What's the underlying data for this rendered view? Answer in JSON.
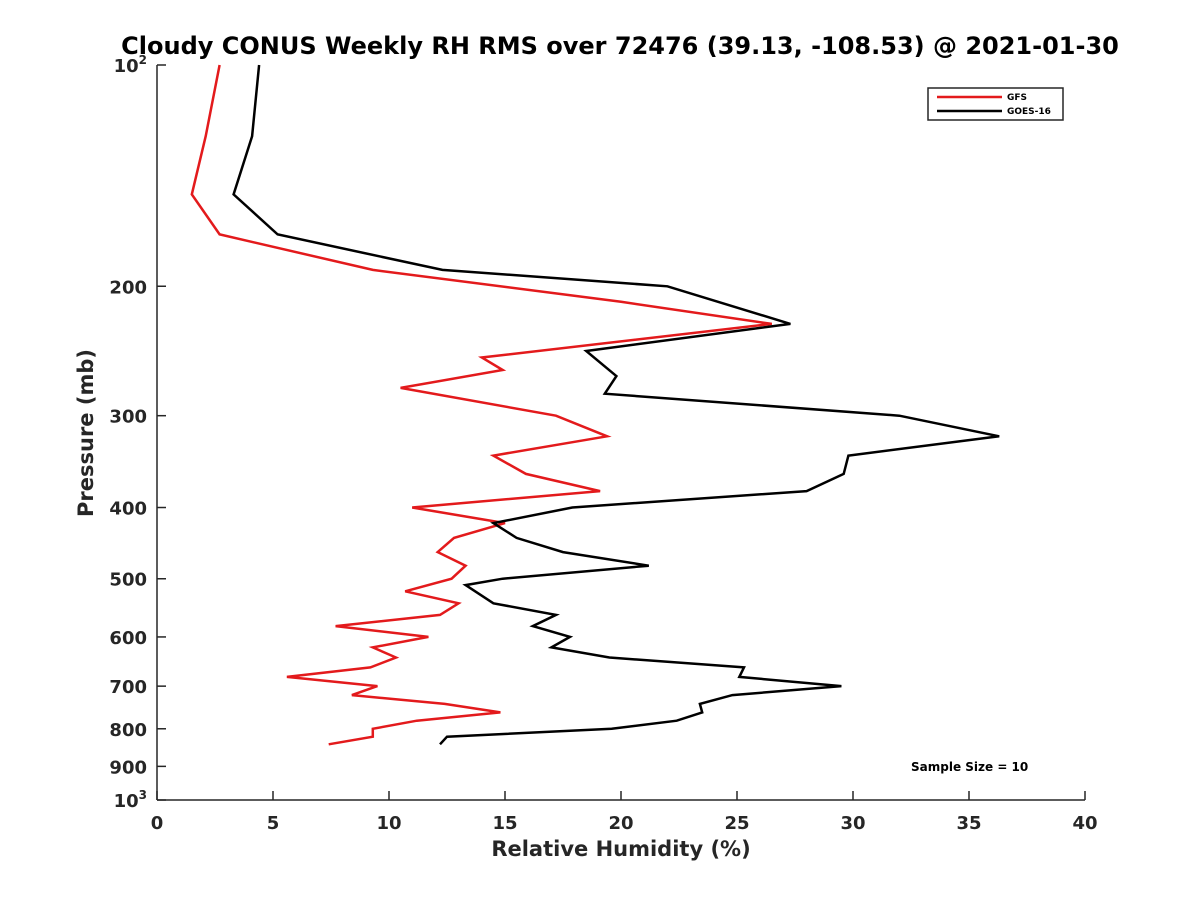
{
  "chart_data": {
    "type": "line",
    "title": "Cloudy CONUS Weekly RH RMS over 72476 (39.13, -108.53) @ 2021-01-30",
    "xlabel": "Relative Humidity (%)",
    "ylabel": "Pressure (mb)",
    "xlim": [
      0,
      40
    ],
    "ylim": [
      100,
      1000
    ],
    "y_scale": "log",
    "y_reversed": true,
    "x_ticks": [
      0,
      5,
      10,
      15,
      20,
      25,
      30,
      35,
      40
    ],
    "x_tick_labels": [
      "0",
      "5",
      "10",
      "15",
      "20",
      "25",
      "30",
      "35",
      "40"
    ],
    "y_ticks": [
      100,
      200,
      300,
      400,
      500,
      600,
      700,
      800,
      900,
      1000
    ],
    "y_tick_labels": [
      {
        "base": "10",
        "sup": "2"
      },
      {
        "base": "200",
        "sup": ""
      },
      {
        "base": "300",
        "sup": ""
      },
      {
        "base": "400",
        "sup": ""
      },
      {
        "base": "500",
        "sup": ""
      },
      {
        "base": "600",
        "sup": ""
      },
      {
        "base": "700",
        "sup": ""
      },
      {
        "base": "800",
        "sup": ""
      },
      {
        "base": "900",
        "sup": ""
      },
      {
        "base": "10",
        "sup": "3"
      }
    ],
    "grid": false,
    "legend_position": "top-right",
    "annotation": "Sample Size = 10",
    "series": [
      {
        "name": "GFS",
        "color": "#e31a1c",
        "points": [
          [
            2.7,
            100
          ],
          [
            2.1,
            125
          ],
          [
            1.5,
            150
          ],
          [
            2.7,
            170
          ],
          [
            9.3,
            190
          ],
          [
            20,
            210
          ],
          [
            26.5,
            225
          ],
          [
            14,
            250
          ],
          [
            14.9,
            260
          ],
          [
            10.5,
            275
          ],
          [
            17.2,
            300
          ],
          [
            19.4,
            320
          ],
          [
            14.5,
            340
          ],
          [
            15.9,
            360
          ],
          [
            19.1,
            380
          ],
          [
            11.0,
            400
          ],
          [
            15.0,
            420
          ],
          [
            12.8,
            440
          ],
          [
            12.1,
            460
          ],
          [
            13.3,
            480
          ],
          [
            12.7,
            500
          ],
          [
            10.7,
            520
          ],
          [
            13.0,
            540
          ],
          [
            12.2,
            560
          ],
          [
            7.7,
            580
          ],
          [
            11.7,
            600
          ],
          [
            9.3,
            620
          ],
          [
            10.3,
            640
          ],
          [
            9.2,
            660
          ],
          [
            5.6,
            680
          ],
          [
            9.5,
            700
          ],
          [
            8.4,
            720
          ],
          [
            12.4,
            740
          ],
          [
            14.8,
            760
          ],
          [
            11.2,
            780
          ],
          [
            9.3,
            800
          ],
          [
            9.3,
            820
          ],
          [
            7.4,
            840
          ]
        ]
      },
      {
        "name": "GOES-16",
        "color": "#000000",
        "points": [
          [
            4.4,
            100
          ],
          [
            4.1,
            125
          ],
          [
            3.3,
            150
          ],
          [
            5.2,
            170
          ],
          [
            12.3,
            190
          ],
          [
            22,
            200
          ],
          [
            27.3,
            225
          ],
          [
            18.5,
            245
          ],
          [
            19.8,
            265
          ],
          [
            19.3,
            280
          ],
          [
            32.0,
            300
          ],
          [
            36.3,
            320
          ],
          [
            29.8,
            340
          ],
          [
            29.6,
            360
          ],
          [
            28.0,
            380
          ],
          [
            17.9,
            400
          ],
          [
            14.5,
            420
          ],
          [
            15.5,
            440
          ],
          [
            17.5,
            460
          ],
          [
            21.2,
            480
          ],
          [
            14.9,
            500
          ],
          [
            13.3,
            510
          ],
          [
            14.5,
            540
          ],
          [
            17.2,
            560
          ],
          [
            16.2,
            580
          ],
          [
            17.8,
            600
          ],
          [
            17.0,
            620
          ],
          [
            19.5,
            640
          ],
          [
            25.3,
            660
          ],
          [
            25.1,
            680
          ],
          [
            29.5,
            700
          ],
          [
            24.8,
            720
          ],
          [
            23.4,
            740
          ],
          [
            23.5,
            760
          ],
          [
            22.4,
            780
          ],
          [
            19.6,
            800
          ],
          [
            12.5,
            820
          ],
          [
            12.2,
            840
          ]
        ]
      }
    ]
  }
}
